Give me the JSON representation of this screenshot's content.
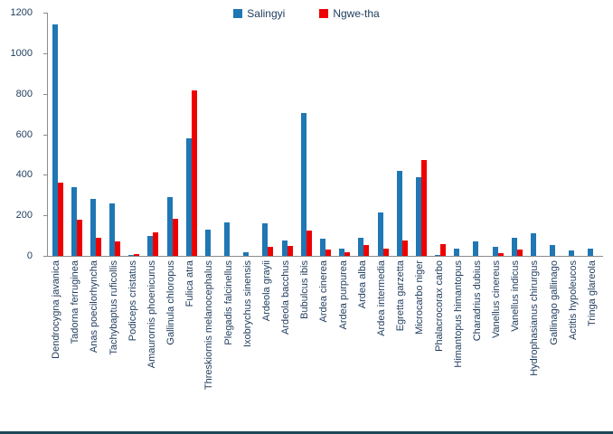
{
  "colors": {
    "series1": "#1f77b4",
    "series2": "#ee0000",
    "axis": "#8c8c8c",
    "text": "#1f3b5c",
    "frame_bottom": "#1c4859"
  },
  "legend": {
    "items": [
      {
        "label": "Salingyi",
        "color": "#1f77b4"
      },
      {
        "label": "Ngwe-tha",
        "color": "#ee0000"
      }
    ]
  },
  "chart_data": {
    "type": "bar",
    "title": "",
    "xlabel": "",
    "ylabel": "",
    "ylim": [
      0,
      1200
    ],
    "ytick_step": 200,
    "grid": false,
    "legend_position": "top-center",
    "categories": [
      "Dendrocygna javanica",
      "Tadorna ferruginea",
      "Anas poecilorhyncha",
      "Tachybaptus ruficollis",
      "Podiceps cristatus",
      "Amaurornis phoenicurus",
      "Gallinula chloropus",
      "Fulica atra",
      "Threskiornis melanocephalus",
      "Plegadis falcinellus",
      "Ixobrychus sinensis",
      "Ardeola grayii",
      "Ardeola bacchus",
      "Bubulcus ibis",
      "Ardea cinerea",
      "Ardea purpurea",
      "Ardea alba",
      "Ardea intermedia",
      "Egretta garzetta",
      "Microcarbo niger",
      "Phalacrocorax carbo",
      "Himantopus himantopus",
      "Charadrius dubius",
      "Vanellus cinereus",
      "Vanellus indicus",
      "Hydrophasianus chirurgus",
      "Gallinago gallinago",
      "Actitis hypoleucos",
      "Tringa glareola"
    ],
    "series": [
      {
        "name": "Salingyi",
        "color": "#1f77b4",
        "values": [
          1140,
          340,
          280,
          260,
          5,
          100,
          290,
          580,
          130,
          165,
          20,
          160,
          75,
          705,
          85,
          35,
          90,
          215,
          420,
          390,
          5,
          35,
          70,
          45,
          90,
          110,
          55,
          25,
          35
        ]
      },
      {
        "name": "Ngwe-tha",
        "color": "#ee0000",
        "values": [
          360,
          180,
          90,
          70,
          10,
          115,
          185,
          815,
          0,
          0,
          0,
          45,
          50,
          125,
          30,
          20,
          55,
          35,
          75,
          475,
          60,
          0,
          0,
          15,
          30,
          0,
          0,
          0,
          0
        ]
      }
    ]
  }
}
